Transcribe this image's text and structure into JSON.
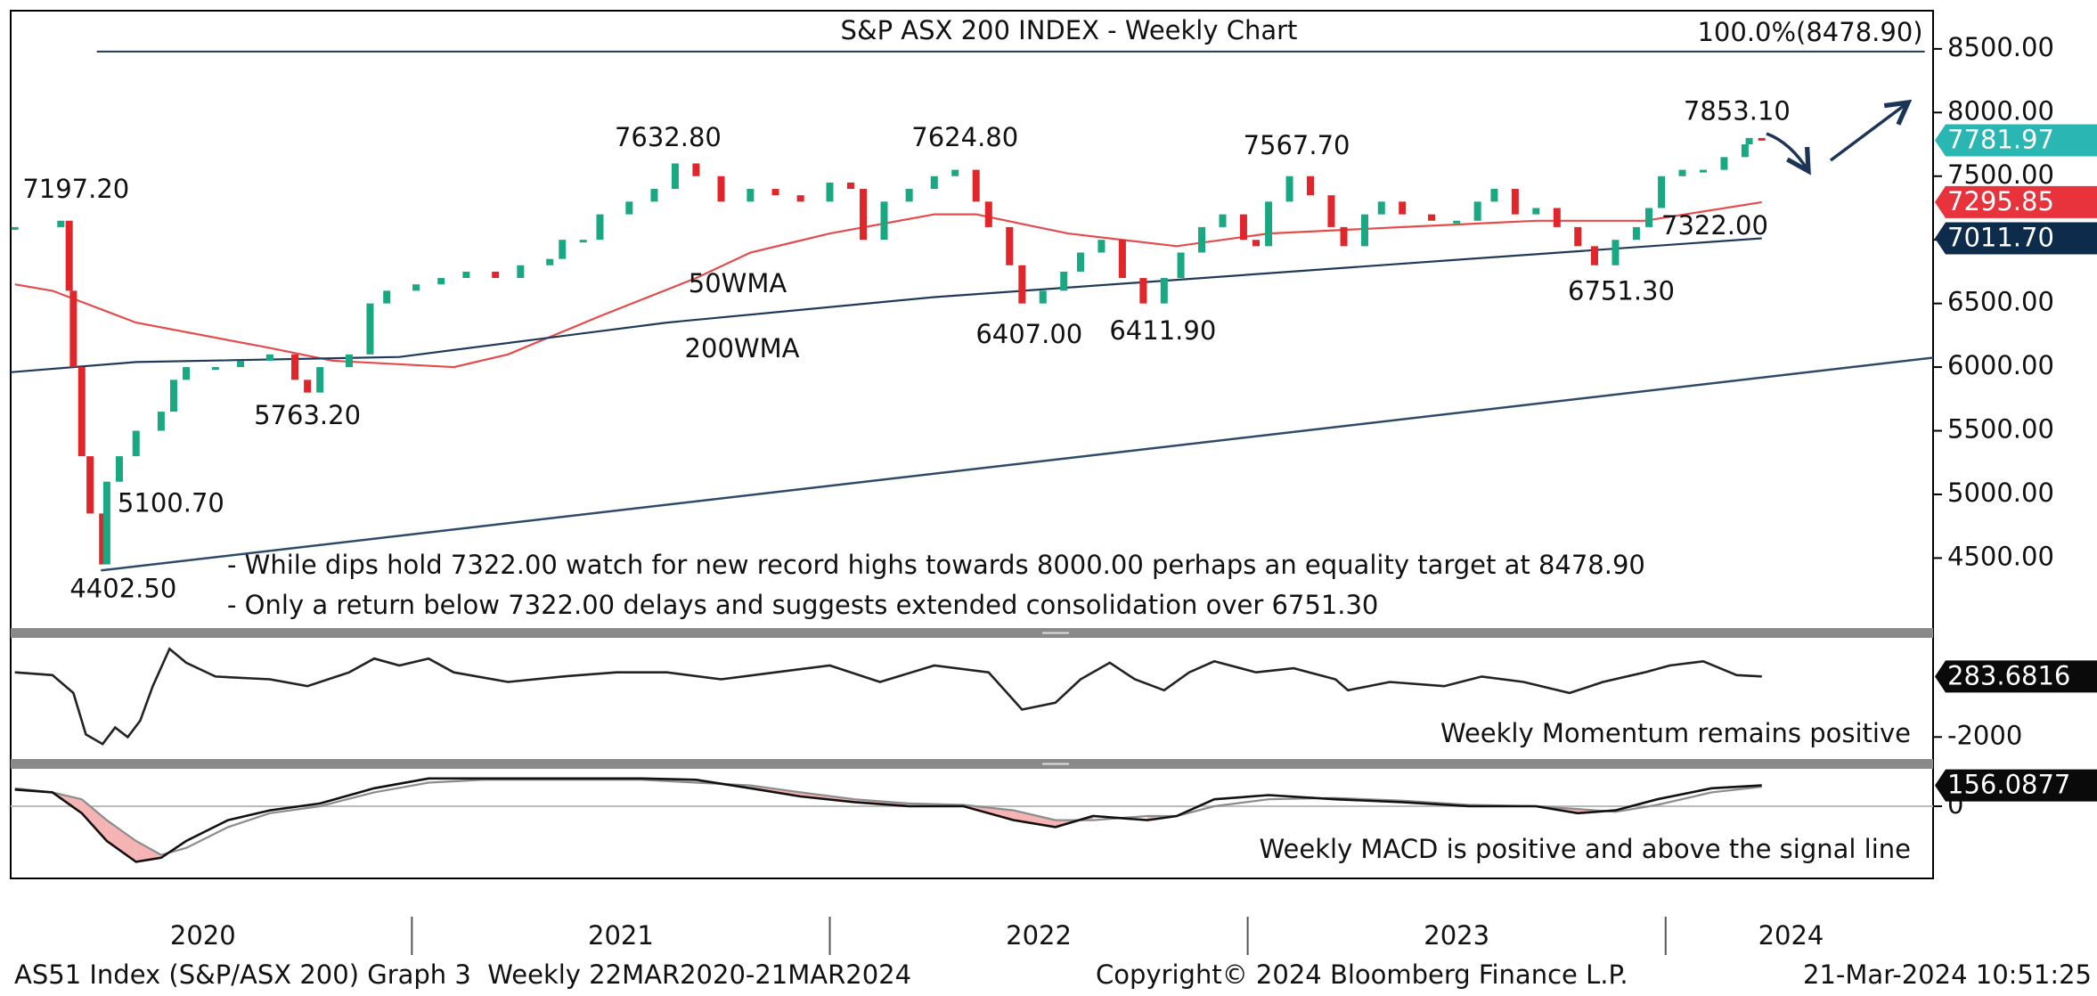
{
  "chart_data": [
    {
      "type": "candlestick",
      "title": "S&P ASX 200 INDEX - Weekly Chart",
      "xlim": [
        2020.04,
        2024.64
      ],
      "ylim": [
        3950,
        8800
      ],
      "yticks": [
        {
          "value": 4500,
          "label": "4500.00"
        },
        {
          "value": 5000,
          "label": "5000.00"
        },
        {
          "value": 5500,
          "label": "5500.00"
        },
        {
          "value": 6000,
          "label": "6000.00"
        },
        {
          "value": 6500,
          "label": "6500.00"
        },
        {
          "value": 7000,
          "label": "7000.00"
        },
        {
          "value": 7500,
          "label": "7500.00"
        },
        {
          "value": 8000,
          "label": "8000.00"
        },
        {
          "value": 8500,
          "label": "8500.00"
        }
      ],
      "up_color": "#19a882",
      "down_color": "#e0262b",
      "x": [
        2020.05,
        2020.16,
        2020.18,
        2020.19,
        2020.21,
        2020.23,
        2020.26,
        2020.27,
        2020.3,
        2020.34,
        2020.4,
        2020.43,
        2020.46,
        2020.53,
        2020.59,
        2020.66,
        2020.72,
        2020.75,
        2020.78,
        2020.85,
        2020.9,
        2020.94,
        2021.01,
        2021.07,
        2021.13,
        2021.2,
        2021.26,
        2021.33,
        2021.36,
        2021.41,
        2021.45,
        2021.52,
        2021.58,
        2021.63,
        2021.68,
        2021.74,
        2021.81,
        2021.87,
        2021.93,
        2022.0,
        2022.05,
        2022.08,
        2022.13,
        2022.19,
        2022.25,
        2022.3,
        2022.35,
        2022.38,
        2022.43,
        2022.46,
        2022.51,
        2022.56,
        2022.6,
        2022.65,
        2022.7,
        2022.75,
        2022.8,
        2022.84,
        2022.89,
        2022.94,
        2022.99,
        2023.02,
        2023.05,
        2023.1,
        2023.15,
        2023.2,
        2023.23,
        2023.28,
        2023.32,
        2023.37,
        2023.44,
        2023.5,
        2023.55,
        2023.59,
        2023.64,
        2023.69,
        2023.74,
        2023.79,
        2023.83,
        2023.88,
        2023.93,
        2023.96,
        2023.99,
        2024.04,
        2024.09,
        2024.14,
        2024.19,
        2024.2,
        2024.23
      ],
      "values": [
        7100,
        7150,
        6600,
        6000,
        5300,
        4850,
        4450,
        5100,
        5300,
        5500,
        5650,
        5900,
        6000,
        6000,
        6050,
        6100,
        5900,
        5800,
        6000,
        6100,
        6500,
        6600,
        6650,
        6700,
        6750,
        6700,
        6800,
        6850,
        7000,
        7000,
        7200,
        7300,
        7400,
        7600,
        7500,
        7300,
        7400,
        7350,
        7300,
        7450,
        7400,
        7000,
        7300,
        7400,
        7500,
        7550,
        7300,
        7100,
        6800,
        6500,
        6600,
        6750,
        6900,
        7000,
        6700,
        6500,
        6700,
        6900,
        7100,
        7200,
        7000,
        6950,
        7300,
        7500,
        7350,
        7100,
        6950,
        7200,
        7300,
        7200,
        7150,
        7150,
        7300,
        7400,
        7200,
        7250,
        7100,
        6950,
        6800,
        7000,
        7100,
        7250,
        7500,
        7550,
        7550,
        7650,
        7750,
        7800,
        7781.97
      ],
      "last_label": "7781.97",
      "last_color": "#2ab7b4",
      "series": [
        {
          "name": "50WMA",
          "color": "#e64b4b",
          "x": [
            2020.05,
            2020.14,
            2020.34,
            2020.66,
            2020.81,
            2021.1,
            2021.23,
            2021.45,
            2021.68,
            2021.81,
            2022.0,
            2022.25,
            2022.35,
            2022.57,
            2022.83,
            2023.05,
            2023.37,
            2023.69,
            2023.95,
            2024.23
          ],
          "values": [
            6650,
            6600,
            6350,
            6150,
            6050,
            6000,
            6100,
            6400,
            6700,
            6900,
            7050,
            7200,
            7200,
            7050,
            6950,
            7050,
            7100,
            7150,
            7150,
            7295.85
          ],
          "last_label": "7295.85",
          "last_color": "#e8333d"
        },
        {
          "name": "200WMA",
          "color": "#1f3a5a",
          "x": [
            2020.04,
            2020.34,
            2020.97,
            2021.61,
            2022.25,
            2022.89,
            2023.53,
            2024.23
          ],
          "values": [
            5960,
            6040,
            6080,
            6350,
            6550,
            6700,
            6850,
            7011.7
          ],
          "last_label": "7011.70",
          "last_color": "#0d2b4b"
        }
      ],
      "trendline": {
        "color": "#2e4a6b",
        "x": [
          2020.256,
          2024.64
        ],
        "values": [
          4402.5,
          6074
        ]
      },
      "levels": [
        {
          "label": "100.0%(8478.90)",
          "value": 8478.9,
          "x": [
            2020.246,
            2024.62
          ],
          "color": "#1f3a5a"
        }
      ],
      "annotations": [
        {
          "label": "7197.20",
          "x": 2020.16,
          "y": 7197.2
        },
        {
          "label": "7632.80",
          "x": 2021.63,
          "y": 7632.8
        },
        {
          "label": "7624.80",
          "x": 2022.3,
          "y": 7624.8
        },
        {
          "label": "7567.70",
          "x": 2023.1,
          "y": 7567.7
        },
        {
          "label": "7853.10",
          "x": 2024.19,
          "y": 7853.1
        },
        {
          "label": "7322.00",
          "x": 2024.09,
          "y": 7322
        },
        {
          "label": "6751.30",
          "x": 2023.83,
          "y": 6751.3
        },
        {
          "label": "6407.00",
          "x": 2022.46,
          "y": 6407
        },
        {
          "label": "6411.90",
          "x": 2022.75,
          "y": 6411.9
        },
        {
          "label": "5763.20",
          "x": 2020.75,
          "y": 5763.2
        },
        {
          "label": "5100.70",
          "x": 2020.27,
          "y": 5100.7
        },
        {
          "label": "4402.50",
          "x": 2020.256,
          "y": 4402.5
        }
      ],
      "notes": [
        "- While dips hold 7322.00 watch for new record highs towards 8000.00 perhaps an equality target at 8478.90",
        "- Only a return below 7322.00 delays and suggests extended consolidation over 6751.30"
      ]
    },
    {
      "type": "line",
      "note": "Weekly Momentum remains positive",
      "xlim": [
        2020.04,
        2024.64
      ],
      "ylim": [
        -2830,
        1740
      ],
      "yticks": [
        -2000
      ],
      "x": [
        2020.05,
        2020.14,
        2020.19,
        2020.22,
        2020.26,
        2020.29,
        2020.32,
        2020.35,
        2020.38,
        2020.42,
        2020.46,
        2020.53,
        2020.66,
        2020.75,
        2020.85,
        2020.91,
        2020.97,
        2021.04,
        2021.1,
        2021.23,
        2021.36,
        2021.49,
        2021.61,
        2021.74,
        2021.87,
        2022.0,
        2022.12,
        2022.25,
        2022.38,
        2022.46,
        2022.54,
        2022.6,
        2022.67,
        2022.73,
        2022.8,
        2022.86,
        2022.92,
        2023.02,
        2023.11,
        2023.21,
        2023.24,
        2023.34,
        2023.47,
        2023.56,
        2023.66,
        2023.77,
        2023.85,
        2023.95,
        2024.01,
        2024.09,
        2024.17,
        2024.23
      ],
      "series": [
        {
          "color": "#222222",
          "values": [
            439,
            335,
            -341,
            -1901,
            -2265,
            -1641,
            -2005,
            -1381,
            -81,
            1323,
            803,
            283,
            179,
            -81,
            439,
            959,
            699,
            959,
            439,
            75,
            283,
            439,
            439,
            179,
            439,
            699,
            75,
            699,
            439,
            -965,
            -705,
            179,
            803,
            179,
            -237,
            439,
            855,
            439,
            595,
            179,
            -237,
            75,
            -81,
            283,
            75,
            -341,
            75,
            439,
            699,
            855,
            335,
            283.6816
          ],
          "last_label": "283.6816",
          "last_color": "#0a0a0a"
        }
      ]
    },
    {
      "type": "line",
      "note": "Weekly MACD is positive and above the signal line",
      "xlim": [
        2020.04,
        2024.64
      ],
      "ylim": [
        -540,
        280
      ],
      "yticks": [
        0
      ],
      "grid": true,
      "fill_color": "#f5b3b3",
      "xticks": [
        {
          "value": 2020.5,
          "label": "2020"
        },
        {
          "value": 2021.5,
          "label": "2021"
        },
        {
          "value": 2022.5,
          "label": "2022"
        },
        {
          "value": 2023.5,
          "label": "2023"
        },
        {
          "value": 2024.3,
          "label": "2024"
        }
      ],
      "year_separators": [
        2021,
        2022,
        2023,
        2024
      ],
      "x": [
        2020.05,
        2020.14,
        2020.21,
        2020.27,
        2020.34,
        2020.4,
        2020.46,
        2020.56,
        2020.66,
        2020.78,
        2020.91,
        2021.04,
        2021.17,
        2021.36,
        2021.55,
        2021.68,
        2021.81,
        2021.93,
        2022.06,
        2022.19,
        2022.32,
        2022.44,
        2022.54,
        2022.63,
        2022.76,
        2022.83,
        2022.92,
        2023.05,
        2023.21,
        2023.37,
        2023.53,
        2023.69,
        2023.79,
        2023.88,
        2023.98,
        2024.11,
        2024.23
      ],
      "series": [
        {
          "color": "#111111",
          "values": [
            125,
            104,
            -52,
            -260,
            -416,
            -385,
            -260,
            -104,
            -31,
            21,
            135,
            208,
            208,
            208,
            208,
            198,
            135,
            73,
            31,
            0,
            0,
            -104,
            -156,
            -73,
            -104,
            -73,
            52,
            83,
            52,
            31,
            0,
            0,
            -52,
            -31,
            52,
            135,
            156.0877
          ],
          "last_label": "156.0877",
          "last_color": "#0a0a0a"
        },
        {
          "color": "#8c8c8c",
          "values": [
            135,
            104,
            52,
            -104,
            -260,
            -364,
            -312,
            -156,
            -52,
            0,
            104,
            177,
            198,
            198,
            198,
            177,
            156,
            104,
            52,
            21,
            10,
            -31,
            -104,
            -104,
            -73,
            -73,
            0,
            52,
            62,
            42,
            10,
            0,
            -21,
            -42,
            10,
            104,
            146
          ]
        }
      ]
    }
  ],
  "footer": [
    "AS51 Index (S&P/ASX 200) Graph 3  Weekly 22MAR2020-21MAR2024",
    "Copyright© 2024 Bloomberg Finance L.P.",
    "21-Mar-2024 10:51:25"
  ]
}
